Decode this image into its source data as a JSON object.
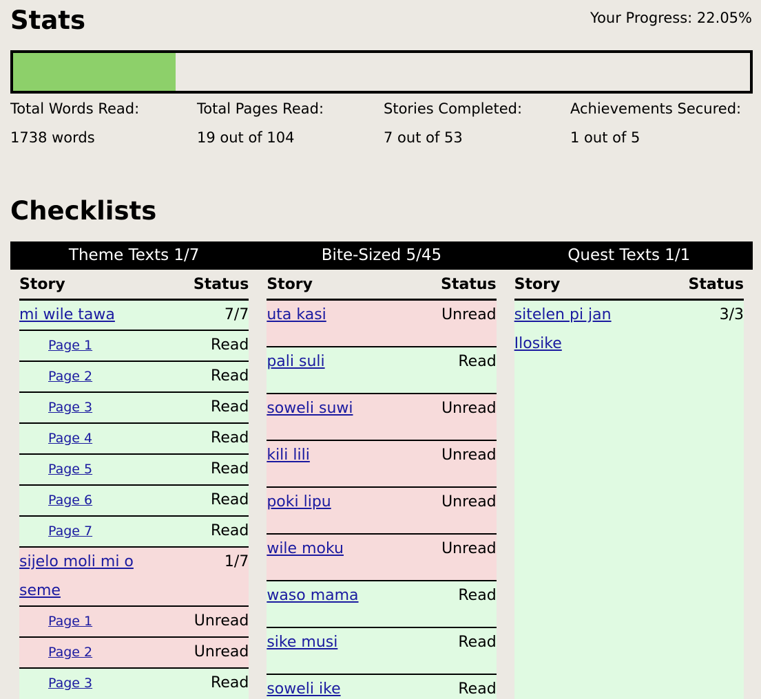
{
  "stats": {
    "title": "Stats",
    "progress": {
      "text": "Your Progress: 22.05%",
      "value": 22.05
    },
    "items": [
      {
        "label": "Total Words Read:",
        "value": "1738 words"
      },
      {
        "label": "Total Pages Read:",
        "value": "19 out of 104"
      },
      {
        "label": "Stories Completed:",
        "value": "7 out of 53"
      },
      {
        "label": "Achievements Secured:",
        "value": "1 out of 5"
      }
    ]
  },
  "checklists": {
    "title": "Checklists",
    "columns": [
      "Story",
      "Status"
    ],
    "lists": [
      {
        "title": "Theme Texts 1/7",
        "stories": [
          {
            "title": "mi wile tawa",
            "status": "7/7",
            "pages": [
              {
                "title": "Page 1",
                "status": "Read"
              },
              {
                "title": "Page 2",
                "status": "Read"
              },
              {
                "title": "Page 3",
                "status": "Read"
              },
              {
                "title": "Page 4",
                "status": "Read"
              },
              {
                "title": "Page 5",
                "status": "Read"
              },
              {
                "title": "Page 6",
                "status": "Read"
              },
              {
                "title": "Page 7",
                "status": "Read"
              }
            ]
          },
          {
            "title": "sijelo moli mi o seme",
            "status": "1/7",
            "pages": [
              {
                "title": "Page 1",
                "status": "Unread"
              },
              {
                "title": "Page 2",
                "status": "Unread"
              },
              {
                "title": "Page 3",
                "status": "Read"
              }
            ]
          }
        ]
      },
      {
        "title": "Bite-Sized 5/45",
        "stories": [
          {
            "title": "uta kasi",
            "status": "Unread"
          },
          {
            "title": "pali suli",
            "status": "Read"
          },
          {
            "title": "soweli suwi",
            "status": "Unread"
          },
          {
            "title": "kili lili",
            "status": "Unread"
          },
          {
            "title": "poki lipu",
            "status": "Unread"
          },
          {
            "title": "wile moku",
            "status": "Unread"
          },
          {
            "title": "waso mama",
            "status": "Read"
          },
          {
            "title": "sike musi",
            "status": "Read"
          },
          {
            "title": "soweli ike",
            "status": "Read"
          }
        ]
      },
      {
        "title": "Quest Texts 1/1",
        "stories": [
          {
            "title": "sitelen pi jan Ilosike",
            "status": "3/3"
          }
        ]
      }
    ]
  }
}
